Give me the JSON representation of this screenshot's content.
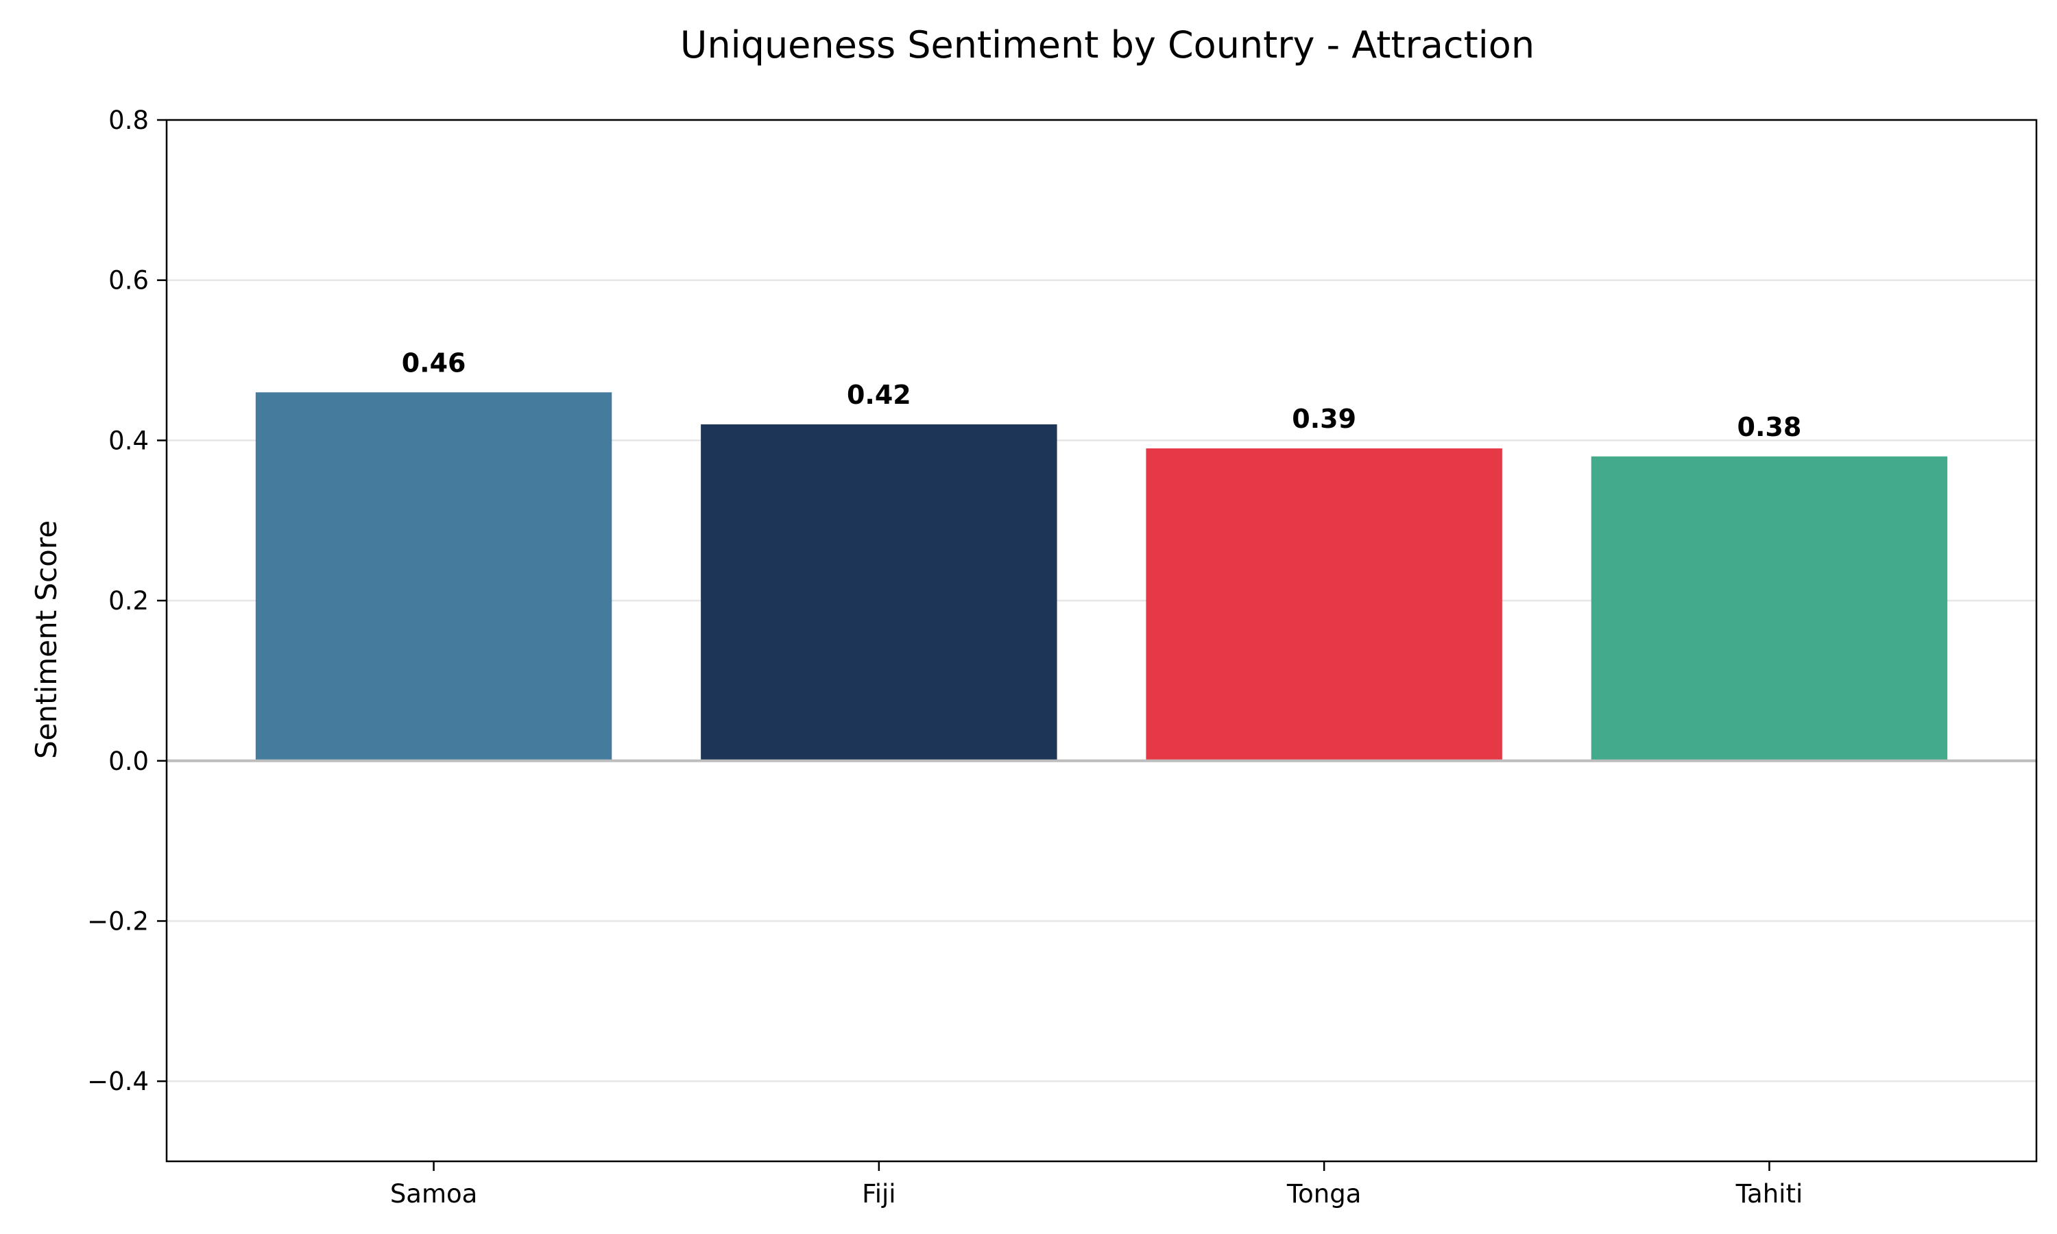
{
  "chart_data": {
    "type": "bar",
    "title": "Uniqueness Sentiment by Country - Attraction",
    "xlabel": "",
    "ylabel": "Sentiment Score",
    "categories": [
      "Samoa",
      "Fiji",
      "Tonga",
      "Tahiti"
    ],
    "values": [
      0.46,
      0.42,
      0.39,
      0.38
    ],
    "value_labels": [
      "0.46",
      "0.42",
      "0.39",
      "0.38"
    ],
    "colors": [
      "#457b9d",
      "#1d3557",
      "#e63946",
      "#43aa8b"
    ],
    "ylim": [
      -0.5,
      0.8
    ],
    "yticks": [
      -0.4,
      -0.2,
      0.0,
      0.2,
      0.4,
      0.6,
      0.8
    ],
    "ytick_labels": [
      "−0.4",
      "−0.2",
      "0.0",
      "0.2",
      "0.4",
      "0.6",
      "0.8"
    ],
    "grid": "y",
    "zero_line": true,
    "legend": "none"
  }
}
